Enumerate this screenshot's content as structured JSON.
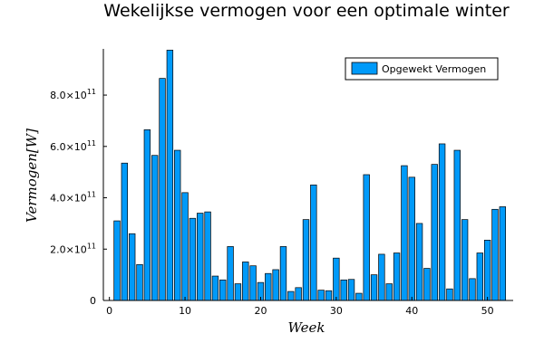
{
  "chart_data": {
    "type": "bar",
    "title": "Wekelijkse vermogen voor een optimale winter",
    "xlabel": "Week",
    "ylabel": "Vermogen[W]",
    "legend_position": "top-right",
    "grid": false,
    "xlim": [
      -0.8,
      53.4
    ],
    "ylim": [
      0,
      980000000000.0
    ],
    "x_ticks": [
      0,
      10,
      20,
      30,
      40,
      50
    ],
    "x_tick_labels": [
      "0",
      "10",
      "20",
      "30",
      "40",
      "50"
    ],
    "y_ticks": [
      0,
      200000000000.0,
      400000000000.0,
      600000000000.0,
      800000000000.0
    ],
    "y_tick_labels": [
      {
        "mantissa": "0",
        "exp": ""
      },
      {
        "mantissa": "2.0×10",
        "exp": "11"
      },
      {
        "mantissa": "4.0×10",
        "exp": "11"
      },
      {
        "mantissa": "6.0×10",
        "exp": "11"
      },
      {
        "mantissa": "8.0×10",
        "exp": "11"
      }
    ],
    "bar_color": "#009af9",
    "series": [
      {
        "name": "Opgewekt Vermogen",
        "x": [
          1,
          2,
          3,
          4,
          5,
          6,
          7,
          8,
          9,
          10,
          11,
          12,
          13,
          14,
          15,
          16,
          17,
          18,
          19,
          20,
          21,
          22,
          23,
          24,
          25,
          26,
          27,
          28,
          29,
          30,
          31,
          32,
          33,
          34,
          35,
          36,
          37,
          38,
          39,
          40,
          41,
          42,
          43,
          44,
          45,
          46,
          47,
          48,
          49,
          50,
          51,
          52
        ],
        "values": [
          310000000000.0,
          535000000000.0,
          260000000000.0,
          140000000000.0,
          665000000000.0,
          565000000000.0,
          865000000000.0,
          975000000000.0,
          585000000000.0,
          420000000000.0,
          320000000000.0,
          340000000000.0,
          345000000000.0,
          95000000000.0,
          80000000000.0,
          210000000000.0,
          65000000000.0,
          150000000000.0,
          135000000000.0,
          70000000000.0,
          105000000000.0,
          120000000000.0,
          210000000000.0,
          35000000000.0,
          50000000000.0,
          315000000000.0,
          450000000000.0,
          40000000000.0,
          38000000000.0,
          165000000000.0,
          80000000000.0,
          82000000000.0,
          28000000000.0,
          490000000000.0,
          100000000000.0,
          180000000000.0,
          65000000000.0,
          185000000000.0,
          525000000000.0,
          480000000000.0,
          300000000000.0,
          125000000000.0,
          530000000000.0,
          610000000000.0,
          45000000000.0,
          585000000000.0,
          315000000000.0,
          85000000000.0,
          185000000000.0,
          235000000000.0,
          355000000000.0,
          365000000000.0
        ]
      }
    ]
  }
}
